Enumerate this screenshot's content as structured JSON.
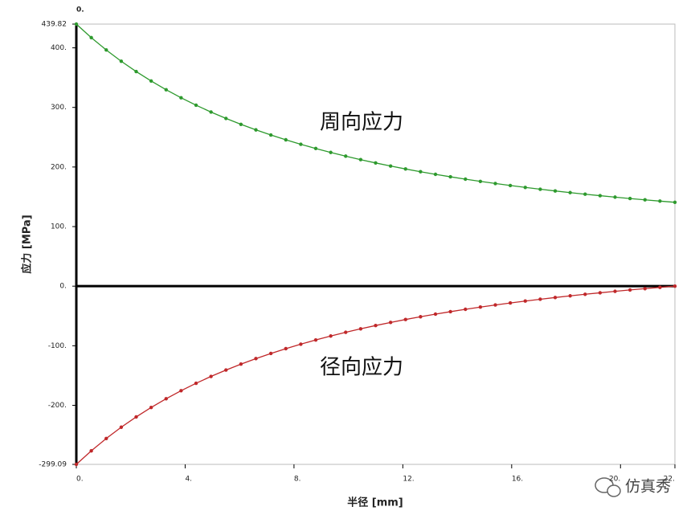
{
  "chart_data": {
    "type": "line",
    "top_label": "0.",
    "x_label": "半径 [mm]",
    "y_label": "应力 [MPa]",
    "annotations": [
      "周向应力",
      "径向应力"
    ],
    "watermark": "仿真秀",
    "x": [
      0,
      0.55,
      1.1,
      1.65,
      2.2,
      2.75,
      3.3,
      3.85,
      4.4,
      4.95,
      5.5,
      6.05,
      6.6,
      7.15,
      7.7,
      8.25,
      8.8,
      9.35,
      9.9,
      10.45,
      11,
      11.55,
      12.1,
      12.65,
      13.2,
      13.75,
      14.3,
      14.85,
      15.4,
      15.95,
      16.5,
      17.05,
      17.6,
      18.15,
      18.7,
      19.25,
      19.8,
      20.35,
      20.9,
      21.45,
      22
    ],
    "series": [
      {
        "name": "周向应力",
        "color": "#2e9a2e",
        "values": [
          439.82,
          417.08,
          396.37,
          377.47,
          360.16,
          344.28,
          329.66,
          316.19,
          303.74,
          292.21,
          281.52,
          271.58,
          262.33,
          253.69,
          245.64,
          238.1,
          231.03,
          224.41,
          218.18,
          212.32,
          206.81,
          201.61,
          196.7,
          192.07,
          187.68,
          183.53,
          179.59,
          175.85,
          172.31,
          168.94,
          165.73,
          162.68,
          159.77,
          157.0,
          154.35,
          151.83,
          149.41,
          147.1,
          144.9,
          142.78,
          140.75
        ]
      },
      {
        "name": "径向应力",
        "color": "#c0282a",
        "values": [
          -299.09,
          -276.35,
          -255.64,
          -236.74,
          -219.43,
          -203.55,
          -188.93,
          -175.46,
          -163.01,
          -151.48,
          -140.79,
          -130.85,
          -121.6,
          -112.96,
          -104.91,
          -97.37,
          -90.3,
          -83.68,
          -77.45,
          -71.59,
          -66.08,
          -60.88,
          -55.97,
          -51.34,
          -46.95,
          -42.8,
          -38.86,
          -35.12,
          -31.58,
          -28.21,
          -25.0,
          -21.95,
          -19.04,
          -16.27,
          -13.62,
          -11.1,
          -8.68,
          -6.37,
          -4.17,
          -2.05,
          0
        ]
      }
    ],
    "xlim": [
      0,
      22
    ],
    "ylim": [
      -299.09,
      439.82
    ],
    "xticks": [
      {
        "value": 0,
        "label": "0."
      },
      {
        "value": 4,
        "label": "4."
      },
      {
        "value": 8,
        "label": "8."
      },
      {
        "value": 12,
        "label": "12."
      },
      {
        "value": 16,
        "label": "16."
      },
      {
        "value": 20,
        "label": "20."
      },
      {
        "value": 22,
        "label": "22."
      }
    ],
    "yticks": [
      {
        "value": -299.09,
        "label": "-299.09"
      },
      {
        "value": -200,
        "label": "-200."
      },
      {
        "value": -100,
        "label": "-100."
      },
      {
        "value": 0,
        "label": "0."
      },
      {
        "value": 100,
        "label": "100."
      },
      {
        "value": 200,
        "label": "200."
      },
      {
        "value": 300,
        "label": "300."
      },
      {
        "value": 400,
        "label": "400."
      },
      {
        "value": 439.82,
        "label": "439.82"
      }
    ],
    "grid": false
  }
}
